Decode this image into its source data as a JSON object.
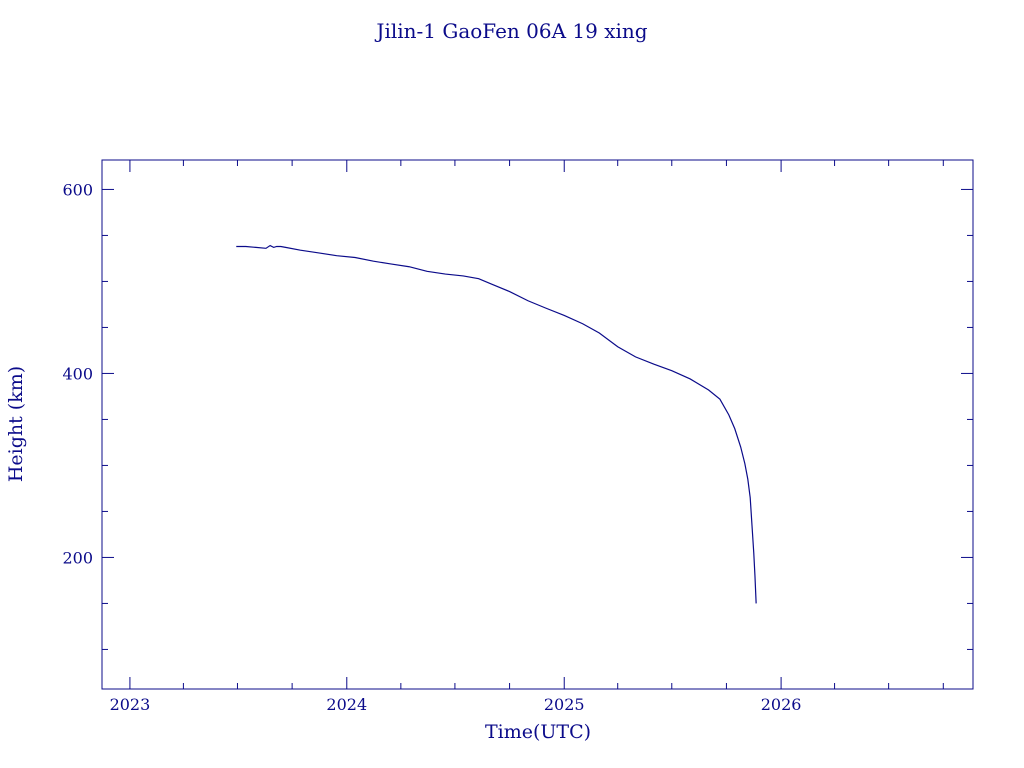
{
  "chart_data": {
    "type": "line",
    "title": "Jilin-1 GaoFen 06A 19 xing",
    "xlabel": "Time(UTC)",
    "ylabel": "Height (km)",
    "xlim": [
      "2022-11-15",
      "2026-11-20"
    ],
    "ylim": [
      57,
      632
    ],
    "x_ticks": [
      {
        "date": "2023-01-01",
        "label": "2023"
      },
      {
        "date": "2024-01-01",
        "label": "2024"
      },
      {
        "date": "2025-01-01",
        "label": "2025"
      },
      {
        "date": "2026-01-01",
        "label": "2026"
      }
    ],
    "y_ticks": [
      200,
      400,
      600
    ],
    "y_minor_ticks": [
      100,
      150,
      250,
      300,
      350,
      450,
      500,
      550
    ],
    "grid": false,
    "color": "#0b0b8a",
    "series": [
      {
        "x": [
          "2023-06-29",
          "2023-07-15",
          "2023-08-01",
          "2023-08-18",
          "2023-08-25",
          "2023-08-31",
          "2023-09-05",
          "2023-09-12",
          "2023-09-20",
          "2023-10-15",
          "2023-11-15",
          "2023-12-15",
          "2024-01-15",
          "2024-02-15",
          "2024-03-15",
          "2024-04-15",
          "2024-05-15",
          "2024-06-15",
          "2024-07-15",
          "2024-08-10",
          "2024-09-01",
          "2024-10-01",
          "2024-11-01",
          "2024-12-01",
          "2025-01-01",
          "2025-02-01",
          "2025-03-01",
          "2025-04-01",
          "2025-05-01",
          "2025-06-01",
          "2025-07-01",
          "2025-08-01",
          "2025-09-01",
          "2025-09-20",
          "2025-10-05",
          "2025-10-15",
          "2025-10-25",
          "2025-11-01",
          "2025-11-06",
          "2025-11-10",
          "2025-11-13",
          "2025-11-16",
          "2025-11-18",
          "2025-11-20"
        ],
        "y": [
          538,
          538,
          537,
          536,
          539,
          537,
          538,
          538,
          537,
          534,
          531,
          528,
          526,
          522,
          519,
          516,
          511,
          508,
          506,
          503,
          497,
          489,
          479,
          471,
          463,
          454,
          444,
          429,
          418,
          410,
          403,
          394,
          382,
          372,
          355,
          340,
          320,
          302,
          285,
          265,
          235,
          205,
          180,
          150
        ]
      }
    ]
  }
}
